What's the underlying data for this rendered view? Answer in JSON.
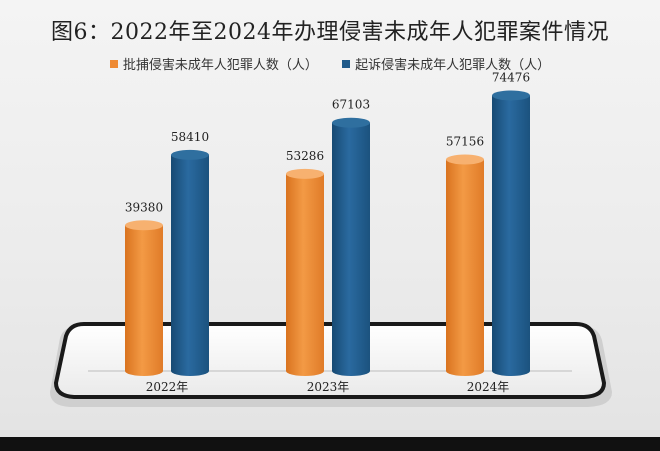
{
  "title": "图6：2022年至2024年办理侵害未成年人犯罪案件情况",
  "colors": {
    "series_1": "#ee8a33",
    "series_2": "#1f5a8a"
  },
  "chart_data": {
    "type": "bar",
    "title": "图6：2022年至2024年办理侵害未成年人犯罪案件情况",
    "categories": [
      "2022年",
      "2023年",
      "2024年"
    ],
    "series": [
      {
        "name": "批捕侵害未成年人犯罪人数（人）",
        "values": [
          39380,
          53286,
          57156
        ]
      },
      {
        "name": "起诉侵害未成年人犯罪人数（人）",
        "values": [
          58410,
          67103,
          74476
        ]
      }
    ],
    "ylim": [
      0,
      80000
    ],
    "legend": "top",
    "grid": false,
    "style": "3d-cylinder"
  }
}
